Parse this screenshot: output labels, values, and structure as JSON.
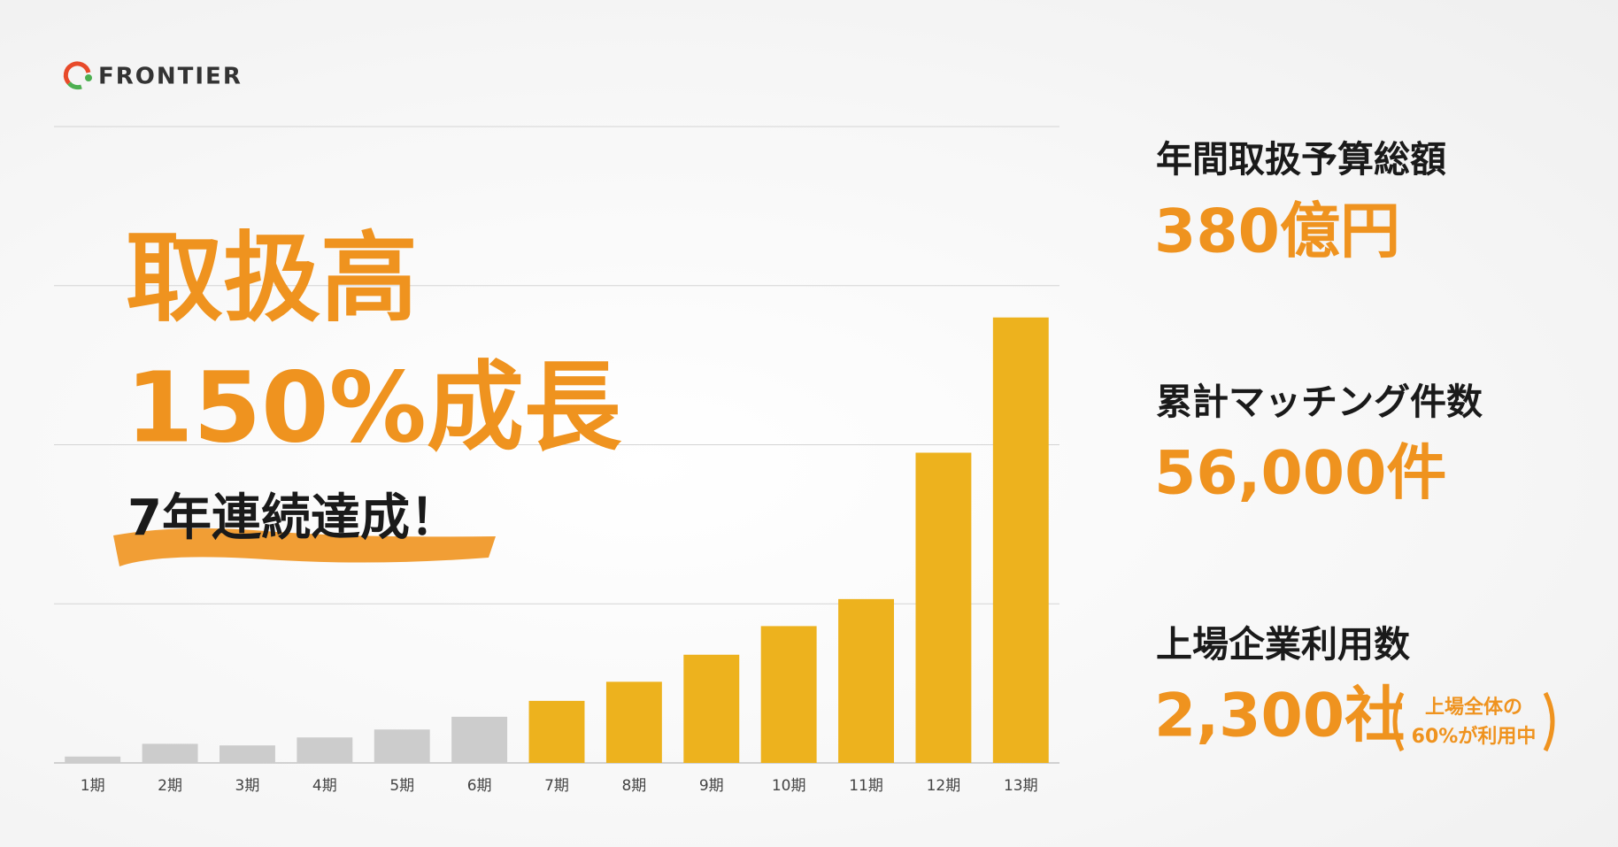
{
  "logo": {
    "name": "FRONTIER"
  },
  "headline": {
    "line1": "取扱高",
    "line2": "150%成長",
    "sub": "7年連続達成！"
  },
  "stats": [
    {
      "label": "年間取扱予算総額",
      "value": "380億円"
    },
    {
      "label": "累計マッチング件数",
      "value": "56,000件"
    },
    {
      "label": "上場企業利用数",
      "value": "2,300社",
      "note": [
        "上場全体の",
        "60%が利用中"
      ]
    }
  ],
  "chart_data": {
    "type": "bar",
    "categories": [
      "1期",
      "2期",
      "3期",
      "4期",
      "5期",
      "6期",
      "7期",
      "8期",
      "9期",
      "10期",
      "11期",
      "12期",
      "13期"
    ],
    "values": [
      0.04,
      0.12,
      0.11,
      0.16,
      0.21,
      0.29,
      0.39,
      0.51,
      0.68,
      0.86,
      1.03,
      1.95,
      2.8
    ],
    "colors": [
      "#cccccc",
      "#cccccc",
      "#cccccc",
      "#cccccc",
      "#cccccc",
      "#cccccc",
      "#edb21e",
      "#edb21e",
      "#edb21e",
      "#edb21e",
      "#edb21e",
      "#edb21e",
      "#edb21e"
    ],
    "ylim": [
      0,
      4
    ],
    "yticks": [
      0,
      1,
      2,
      3,
      4
    ],
    "grid": true
  }
}
